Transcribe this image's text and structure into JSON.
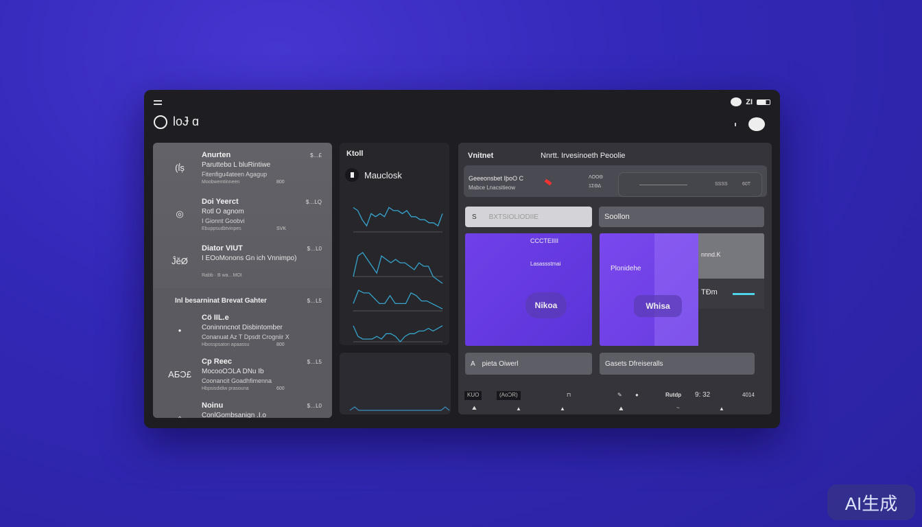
{
  "app": {
    "brand": "loɈ ɑ",
    "status_text": "ZI",
    "colors": {
      "accent": "#4dd4e6",
      "purple": "#6a3ee6",
      "background": "#3328b8"
    }
  },
  "list": {
    "items": [
      {
        "icon": "(ẛș",
        "title": "Anurten",
        "line1": "Paruttebɑ L bluRintiwe",
        "line2": "Fitenfigu4ateen Agagup",
        "line3": "Moobwemtinneen",
        "num": "800",
        "price": "$…£"
      },
      {
        "icon": "◎",
        "title": "Doi Yeerct",
        "line1": "Rotl O agnom",
        "line2": "I Gionnt Goobvi",
        "line3": "Ebuppsudbtvinpes",
        "num": "SVK",
        "price": "$…LQ"
      },
      {
        "icon": "ĴĕØ",
        "title": "Diator VIUT",
        "line1": "I EOoMonons Gn ich Vnnimpo)",
        "line2": "",
        "line3": "Rabb · B wa…MOI",
        "num": "",
        "price": "$…L0"
      }
    ],
    "section_title": "Inl besarninat Brevat Gahter",
    "section_price": "$…L5",
    "items2": [
      {
        "icon": "•",
        "title": "Cö IIL.e",
        "line1": "Coninnncnot Disbintomber",
        "line2": "Conanuat Az T Dpsdt Crogniir X",
        "line3": "Hbosspsaton apaassu",
        "num": "800",
        "price": ""
      },
      {
        "icon": "ΑБƆ£",
        "title": "Cp Reec",
        "line1": "MocooOƆLA DNu Ib",
        "line2": "Coonancit Goadhfimenna",
        "line3": "Hbpsisdidiw prasouna",
        "num": "600",
        "price": "$…L5"
      },
      {
        "icon": "⌂",
        "title": "Noinu",
        "line1": "ConlGombsanign .I.o",
        "line2": "",
        "line3": "",
        "num": "",
        "price": "$…L0"
      }
    ]
  },
  "chart_panel": {
    "title": "Ktoll",
    "subtitle": "Mauclosk"
  },
  "chart_data": {
    "type": "line",
    "series": [
      {
        "values": [
          8,
          7,
          4,
          2,
          6,
          5,
          6,
          5,
          8,
          7,
          7,
          6,
          7,
          5,
          5,
          4,
          4,
          3,
          3,
          2,
          6
        ]
      },
      {
        "values": [
          2,
          8,
          9,
          7,
          5,
          3,
          8,
          7,
          6,
          7,
          6,
          6,
          5,
          4,
          6,
          5,
          5,
          2,
          1,
          0
        ]
      },
      {
        "values": [
          4,
          9,
          8,
          8,
          6,
          4,
          4,
          7,
          4,
          4,
          4,
          8,
          7,
          5,
          5,
          4,
          3,
          2
        ]
      },
      {
        "values": [
          6,
          2,
          1,
          1,
          1,
          2,
          1,
          3,
          3,
          2,
          0,
          2,
          3,
          3,
          4,
          4,
          5,
          4,
          5,
          6
        ]
      }
    ]
  },
  "right": {
    "label": "Vnitnet",
    "title": "Nnrtt. Irvesinoeth Peoolie",
    "summary": {
      "line1": "Geeeonsbet IþoO C",
      "line2": "Mabce Lnacsitieow",
      "val1": "ΛΟΟΘ",
      "val2": "1ΣΘΔ",
      "val3": "SSSS",
      "val4": "60T"
    },
    "tab1": {
      "icon": "S",
      "label": "BXTSIOLIODIIE"
    },
    "tab2": {
      "label": "Soollon"
    },
    "card1": {
      "top": "CCCTEIIII",
      "mid": "Lasassstmai",
      "pill": "Nikoa"
    },
    "card2": {
      "label": "Plonidehe",
      "pill": "Whisa",
      "side_top": "nnnd.K",
      "side_mid": "TÐm"
    },
    "btn1": {
      "icon": "A",
      "label": "pieta Oiwerl"
    },
    "btn2": {
      "label": "Gasets Dfreiseralls"
    },
    "footer_left": {
      "chip1": "KUO",
      "chip2": "(AoƆR)"
    },
    "footer_right": {
      "label": "Rutdp",
      "time": "9: 32",
      "extra": "4014"
    }
  },
  "watermark": "AI生成"
}
